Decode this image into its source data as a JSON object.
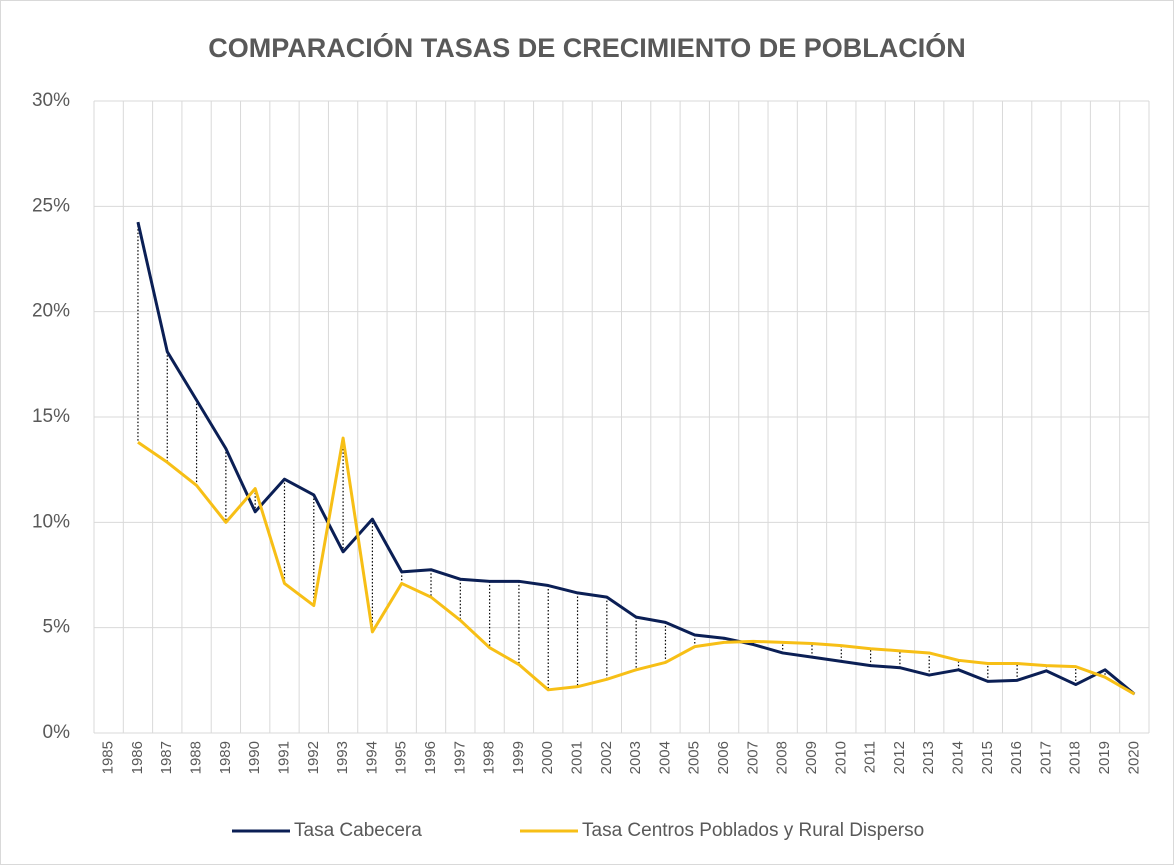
{
  "chart_data": {
    "type": "line",
    "title": "COMPARACIÓN TASAS DE CRECIMIENTO DE POBLACIÓN",
    "categories": [
      "1985",
      "1986",
      "1987",
      "1988",
      "1989",
      "1990",
      "1991",
      "1992",
      "1993",
      "1994",
      "1995",
      "1996",
      "1997",
      "1998",
      "1999",
      "2000",
      "2001",
      "2002",
      "2003",
      "2004",
      "2005",
      "2006",
      "2007",
      "2008",
      "2009",
      "2010",
      "2011",
      "2012",
      "2013",
      "2014",
      "2015",
      "2016",
      "2017",
      "2018",
      "2019",
      "2020"
    ],
    "series": [
      {
        "name": "Tasa Cabecera",
        "color": "#0b1f55",
        "values": [
          null,
          24.25,
          18.1,
          15.8,
          13.5,
          10.5,
          12.05,
          11.3,
          8.6,
          10.15,
          7.65,
          7.75,
          7.3,
          7.2,
          7.2,
          7.0,
          6.65,
          6.45,
          5.5,
          5.25,
          4.65,
          4.5,
          4.2,
          3.8,
          3.6,
          3.4,
          3.2,
          3.1,
          2.75,
          3.0,
          2.45,
          2.5,
          2.95,
          2.3,
          3.0,
          1.85
        ]
      },
      {
        "name": "Tasa Centros Poblados y Rural Disperso",
        "color": "#f7bf16",
        "values": [
          null,
          13.8,
          12.85,
          11.75,
          10.0,
          11.6,
          7.1,
          6.05,
          14.0,
          4.8,
          7.1,
          6.45,
          5.35,
          4.05,
          3.25,
          2.05,
          2.2,
          2.55,
          3.0,
          3.35,
          4.1,
          4.3,
          4.35,
          4.3,
          4.25,
          4.15,
          4.0,
          3.9,
          3.8,
          3.45,
          3.3,
          3.3,
          3.2,
          3.15,
          2.65,
          1.85
        ]
      }
    ],
    "ylim": [
      0,
      30
    ],
    "yticks": [
      {
        "value": 0,
        "label": "0%"
      },
      {
        "value": 5,
        "label": "5%"
      },
      {
        "value": 10,
        "label": "10%"
      },
      {
        "value": 15,
        "label": "15%"
      },
      {
        "value": 20,
        "label": "20%"
      },
      {
        "value": 25,
        "label": "25%"
      },
      {
        "value": 30,
        "label": "30%"
      }
    ],
    "grid": true,
    "drop_lines": true,
    "legend": "bottom"
  }
}
